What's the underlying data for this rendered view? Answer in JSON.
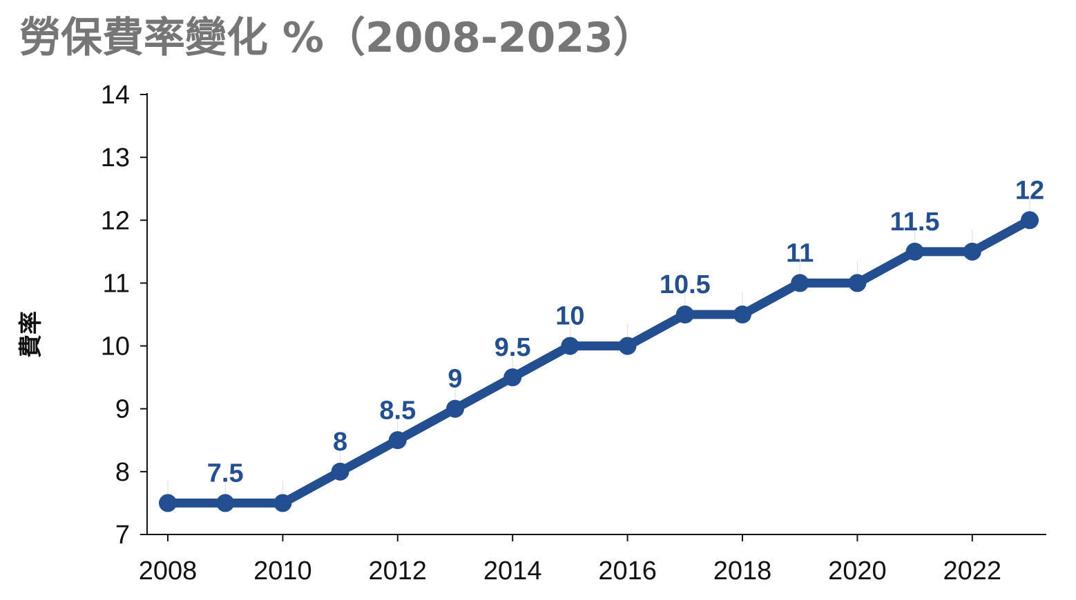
{
  "colors": {
    "series": "#234e8f",
    "title": "#767676",
    "axis": "#111111"
  },
  "chart_data": {
    "type": "line",
    "title": "勞保費率變化 %（2008-2023）",
    "xlabel": "",
    "ylabel": "費率",
    "x": [
      2008,
      2009,
      2010,
      2011,
      2012,
      2013,
      2014,
      2015,
      2016,
      2017,
      2018,
      2019,
      2020,
      2021,
      2022,
      2023
    ],
    "values": [
      7.5,
      7.5,
      7.5,
      8,
      8.5,
      9,
      9.5,
      10,
      10,
      10.5,
      10.5,
      11,
      11,
      11.5,
      11.5,
      12
    ],
    "data_labels": [
      {
        "x": 2009,
        "text": "7.5"
      },
      {
        "x": 2011,
        "text": "8"
      },
      {
        "x": 2012,
        "text": "8.5"
      },
      {
        "x": 2013,
        "text": "9"
      },
      {
        "x": 2014,
        "text": "9.5"
      },
      {
        "x": 2015,
        "text": "10"
      },
      {
        "x": 2017,
        "text": "10.5"
      },
      {
        "x": 2019,
        "text": "11"
      },
      {
        "x": 2021,
        "text": "11.5"
      },
      {
        "x": 2023,
        "text": "12"
      }
    ],
    "xlim": [
      2008,
      2023
    ],
    "ylim": [
      7,
      14
    ],
    "xticks": [
      2008,
      2010,
      2012,
      2014,
      2016,
      2018,
      2020,
      2022
    ],
    "yticks": [
      7,
      8,
      9,
      10,
      11,
      12,
      13,
      14
    ],
    "grid": false,
    "legend": "none"
  }
}
